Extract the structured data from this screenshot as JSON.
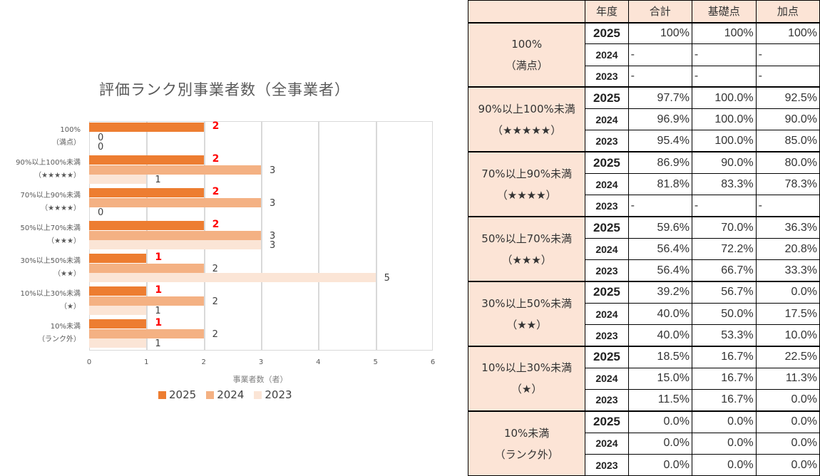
{
  "chart_data": {
    "type": "bar",
    "orientation": "horizontal",
    "title": "評価ランク別事業者数（全事業者）",
    "xlabel": "事業者数（者）",
    "ylabel": "",
    "xlim": [
      0,
      6
    ],
    "xticks": [
      0,
      1,
      2,
      3,
      4,
      5,
      6
    ],
    "grid": true,
    "legend_position": "bottom",
    "categories": [
      "100%（満点）",
      "90%以上100%未満（★★★★★）",
      "70%以上90%未満（★★★★）",
      "50%以上70%未満（★★★）",
      "30%以上50%未満（★★）",
      "10%以上30%未満（★）",
      "10%未満（ランク外）"
    ],
    "series": [
      {
        "name": "2025",
        "color": "#ed7d31",
        "values": [
          2,
          2,
          2,
          2,
          1,
          1,
          1
        ]
      },
      {
        "name": "2024",
        "color": "#f4b183",
        "values": [
          0,
          3,
          3,
          3,
          2,
          2,
          2
        ]
      },
      {
        "name": "2023",
        "color": "#fbe5d6",
        "values": [
          0,
          1,
          0,
          3,
          5,
          1,
          1
        ]
      }
    ]
  },
  "chart": {
    "title": "評価ランク別事業者数（全事業者）",
    "xlabel": "事業者数（者）",
    "xticks": [
      "0",
      "1",
      "2",
      "3",
      "4",
      "5",
      "6"
    ],
    "categories": [
      {
        "line1": "100%",
        "line2": "（満点）"
      },
      {
        "line1": "90%以上100%未満",
        "line2": "（★★★★★）"
      },
      {
        "line1": "70%以上90%未満",
        "line2": "（★★★★）"
      },
      {
        "line1": "50%以上70%未満",
        "line2": "（★★★）"
      },
      {
        "line1": "30%以上50%未満",
        "line2": "（★★）"
      },
      {
        "line1": "10%以上30%未満",
        "line2": "（★）"
      },
      {
        "line1": "10%未満",
        "line2": "（ランク外）"
      }
    ],
    "legend": [
      "2025",
      "2024",
      "2023"
    ]
  },
  "table": {
    "headers": [
      "",
      "年度",
      "合計",
      "基礎点",
      "加点"
    ],
    "groups": [
      {
        "rank_line1": "100%",
        "rank_line2": "（満点）",
        "rows": [
          {
            "year": "2025",
            "total": "100%",
            "base": "100%",
            "bonus": "100%"
          },
          {
            "year": "2024",
            "total": "-",
            "base": "-",
            "bonus": "-"
          },
          {
            "year": "2023",
            "total": "-",
            "base": "-",
            "bonus": "-"
          }
        ]
      },
      {
        "rank_line1": "90%以上100%未満",
        "rank_line2": "（★★★★★）",
        "rows": [
          {
            "year": "2025",
            "total": "97.7%",
            "base": "100.0%",
            "bonus": "92.5%"
          },
          {
            "year": "2024",
            "total": "96.9%",
            "base": "100.0%",
            "bonus": "90.0%"
          },
          {
            "year": "2023",
            "total": "95.4%",
            "base": "100.0%",
            "bonus": "85.0%"
          }
        ]
      },
      {
        "rank_line1": "70%以上90%未満",
        "rank_line2": "（★★★★）",
        "rows": [
          {
            "year": "2025",
            "total": "86.9%",
            "base": "90.0%",
            "bonus": "80.0%"
          },
          {
            "year": "2024",
            "total": "81.8%",
            "base": "83.3%",
            "bonus": "78.3%"
          },
          {
            "year": "2023",
            "total": "-",
            "base": "-",
            "bonus": "-"
          }
        ]
      },
      {
        "rank_line1": "50%以上70%未満",
        "rank_line2": "（★★★）",
        "rows": [
          {
            "year": "2025",
            "total": "59.6%",
            "base": "70.0%",
            "bonus": "36.3%"
          },
          {
            "year": "2024",
            "total": "56.4%",
            "base": "72.2%",
            "bonus": "20.8%"
          },
          {
            "year": "2023",
            "total": "56.4%",
            "base": "66.7%",
            "bonus": "33.3%"
          }
        ]
      },
      {
        "rank_line1": "30%以上50%未満",
        "rank_line2": "（★★）",
        "rows": [
          {
            "year": "2025",
            "total": "39.2%",
            "base": "56.7%",
            "bonus": "0.0%"
          },
          {
            "year": "2024",
            "total": "40.0%",
            "base": "50.0%",
            "bonus": "17.5%"
          },
          {
            "year": "2023",
            "total": "40.0%",
            "base": "53.3%",
            "bonus": "10.0%"
          }
        ]
      },
      {
        "rank_line1": "10%以上30%未満",
        "rank_line2": "（★）",
        "rows": [
          {
            "year": "2025",
            "total": "18.5%",
            "base": "16.7%",
            "bonus": "22.5%"
          },
          {
            "year": "2024",
            "total": "15.0%",
            "base": "16.7%",
            "bonus": "11.3%"
          },
          {
            "year": "2023",
            "total": "11.5%",
            "base": "16.7%",
            "bonus": "0.0%"
          }
        ]
      },
      {
        "rank_line1": "10%未満",
        "rank_line2": "（ランク外）",
        "rows": [
          {
            "year": "2025",
            "total": "0.0%",
            "base": "0.0%",
            "bonus": "0.0%"
          },
          {
            "year": "2024",
            "total": "0.0%",
            "base": "0.0%",
            "bonus": "0.0%"
          },
          {
            "year": "2023",
            "total": "0.0%",
            "base": "0.0%",
            "bonus": "0.0%"
          }
        ]
      }
    ]
  }
}
